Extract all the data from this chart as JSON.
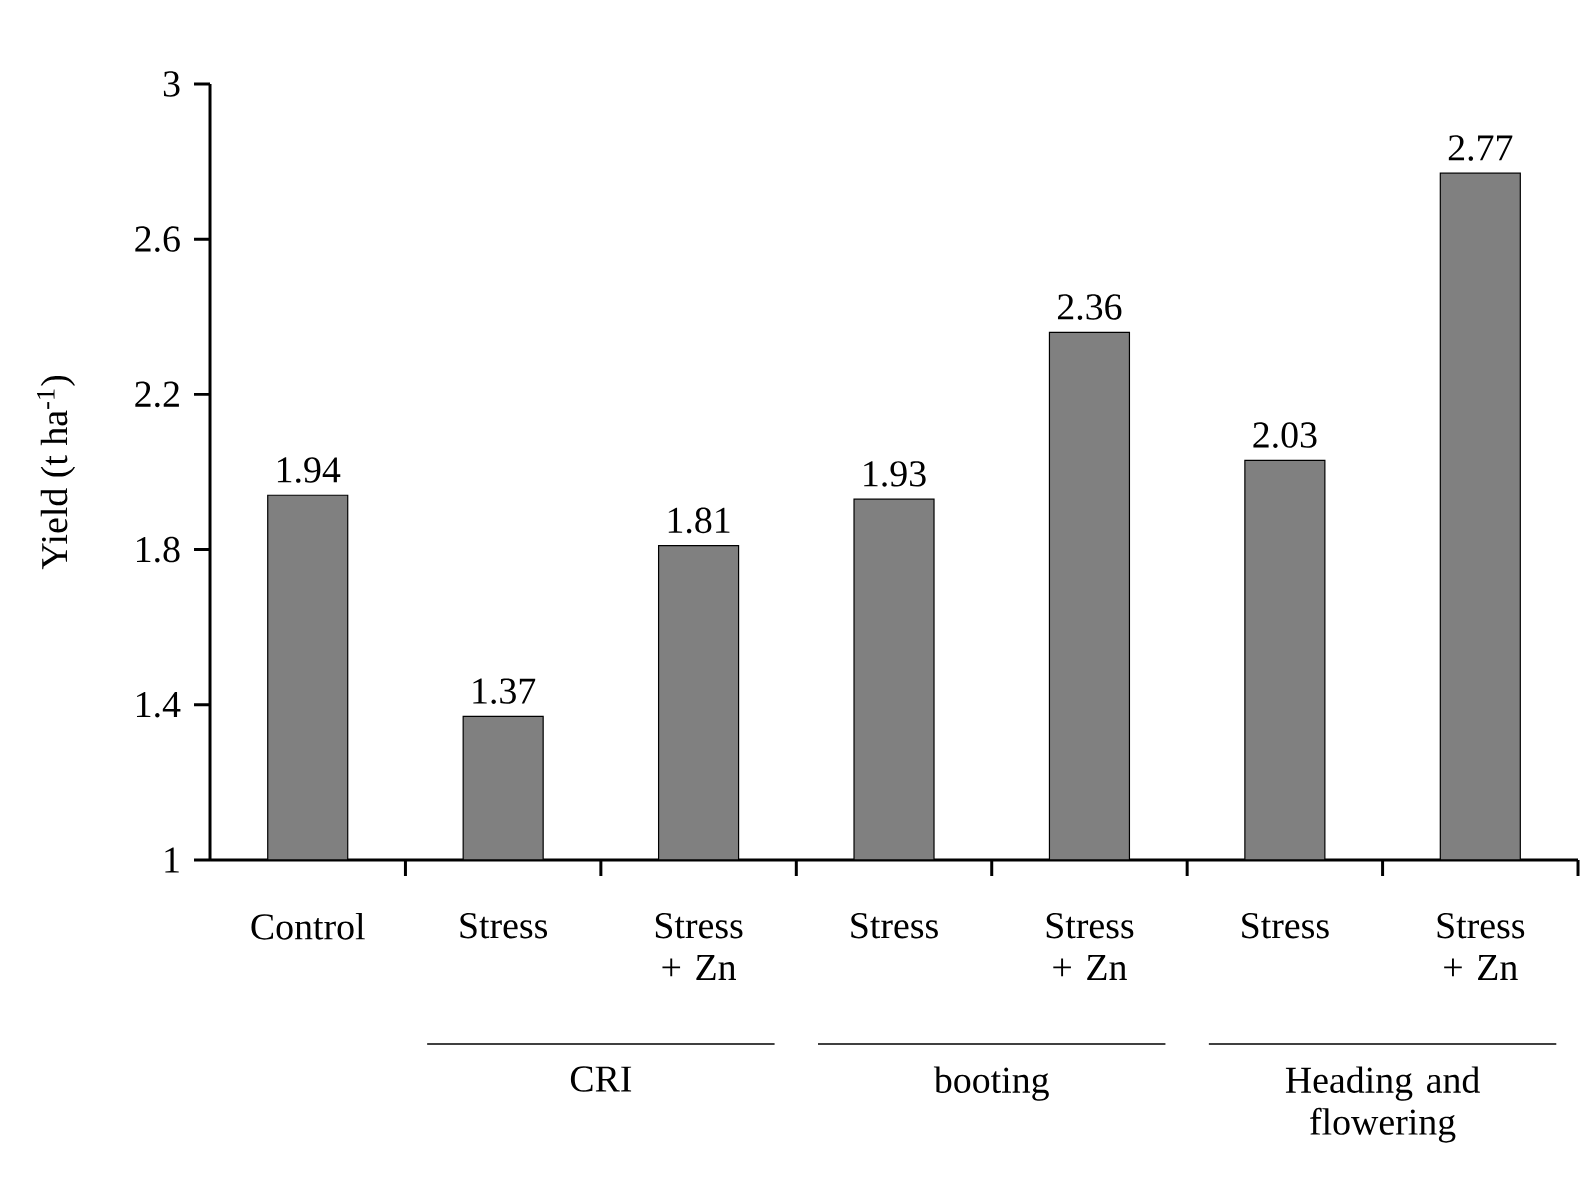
{
  "chart_data": {
    "type": "bar",
    "ylabel": "Yield (t ha$^{-1}$)",
    "categories": [
      "Control",
      "Stress",
      "Stress + Zn",
      "Stress",
      "Stress + Zn",
      "Stress",
      "Stress + Zn"
    ],
    "values": [
      1.94,
      1.37,
      1.81,
      1.93,
      2.36,
      2.03,
      2.77
    ],
    "color": "#808080",
    "ylim": [
      1,
      3
    ],
    "yticks": [
      1,
      1.4,
      1.8,
      2.2,
      2.6,
      3
    ],
    "grid": false,
    "data_labels": true,
    "annotations": [
      "CRI",
      "booting",
      "Heading and flowering"
    ]
  }
}
